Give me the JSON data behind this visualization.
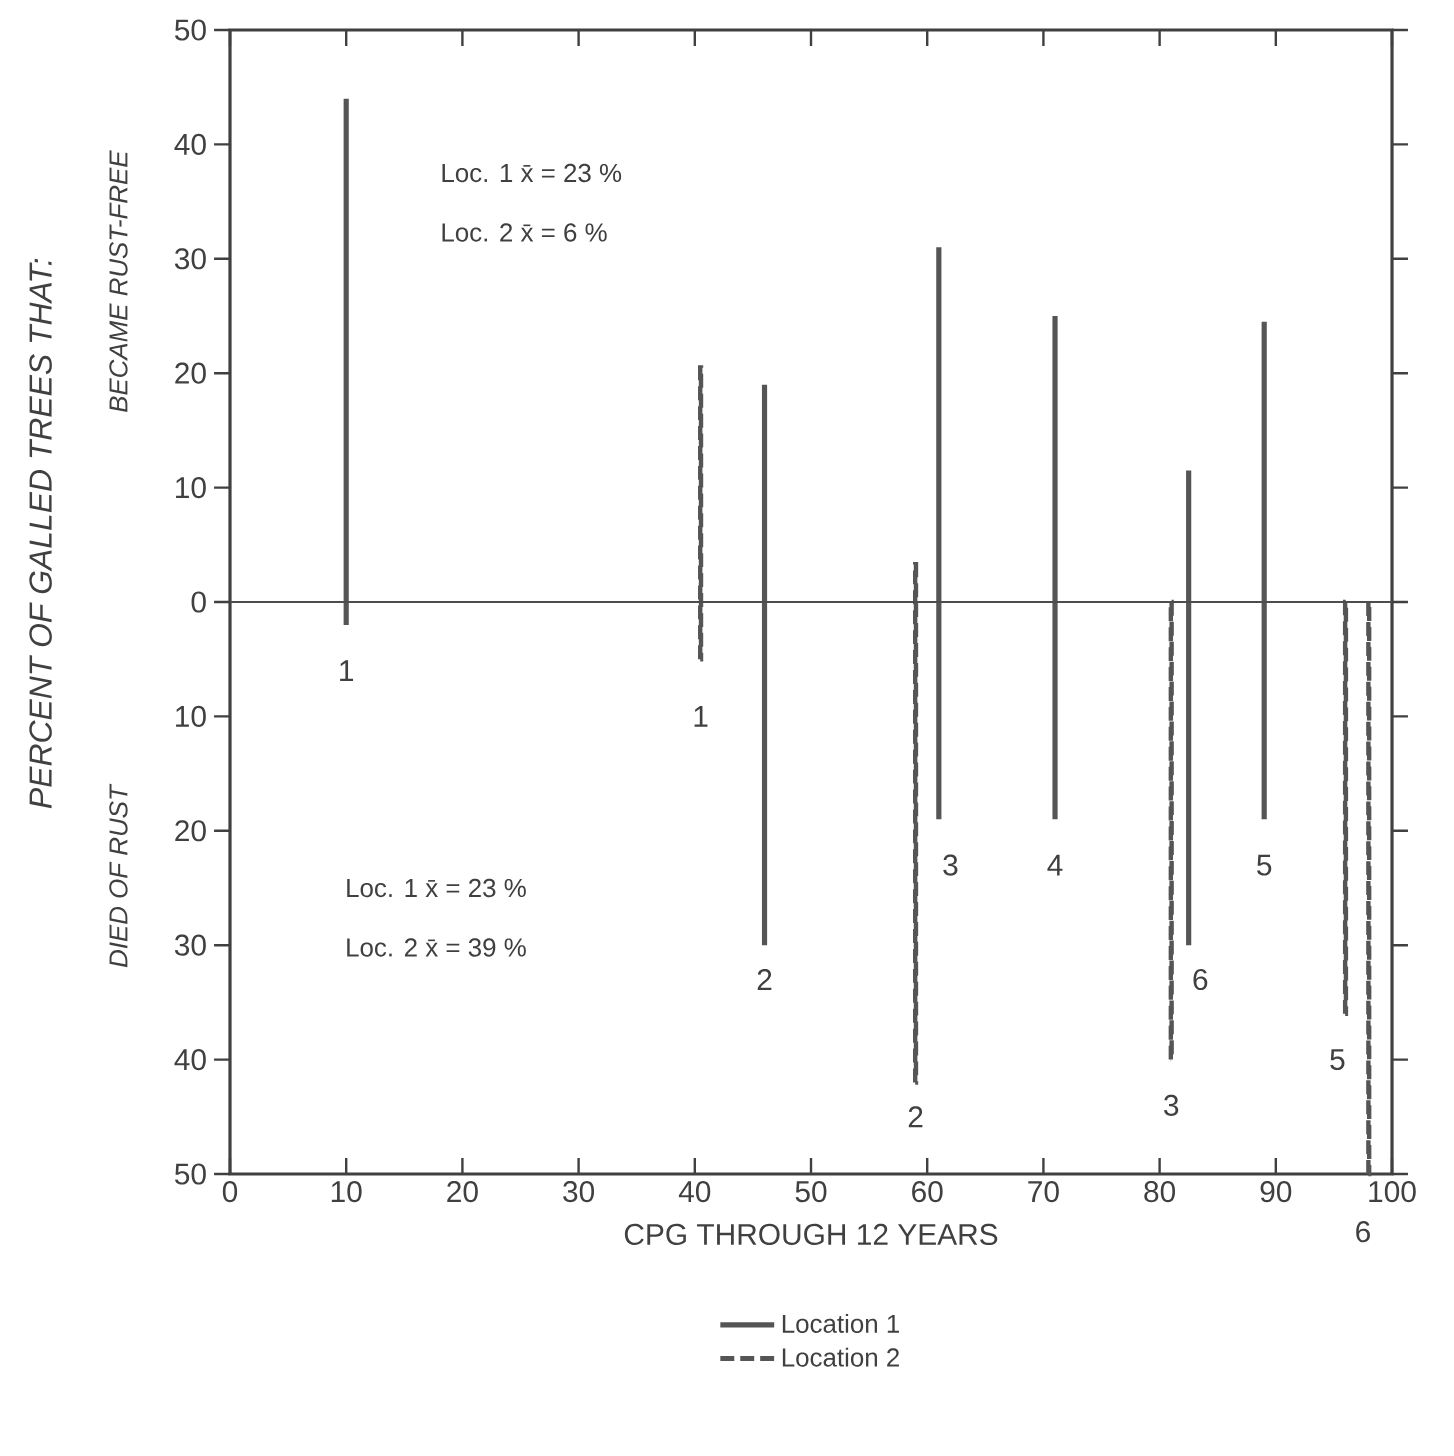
{
  "chart_data": {
    "type": "bar",
    "xlabel": "CPG THROUGH 12 YEARS",
    "ylabel": "PERCENT OF GALLED TREES THAT:",
    "series": [
      {
        "name": "Location 1",
        "color": "#555555",
        "line_style": "solid",
        "x": [
          10,
          46,
          61,
          71,
          82.5,
          89
        ],
        "base": [
          -2,
          -30,
          -19,
          -19,
          -30,
          -19
        ],
        "values": [
          46,
          49,
          50,
          44,
          41.5,
          43.5
        ]
      },
      {
        "name": "Location 2",
        "color": "#555555",
        "line_style": "dashed",
        "x": [
          40.5,
          59,
          81,
          96,
          98
        ],
        "base": [
          -5,
          -42,
          -40,
          -36,
          -50
        ],
        "values": [
          25.5,
          45.3,
          40,
          36,
          50
        ]
      }
    ],
    "xlim": [
      0,
      100
    ],
    "xticks": [
      0,
      10,
      20,
      30,
      40,
      50,
      60,
      70,
      80,
      90,
      100
    ],
    "ylim": [
      -50,
      50
    ],
    "yticks": [
      {
        "value": -50,
        "label": "50"
      },
      {
        "value": -40,
        "label": "40"
      },
      {
        "value": -30,
        "label": "30"
      },
      {
        "value": -20,
        "label": "20"
      },
      {
        "value": -10,
        "label": "10"
      },
      0,
      10,
      20,
      30,
      40,
      50
    ],
    "ref_lines": [
      {
        "axis": "y",
        "value": 0
      }
    ],
    "annotations": [
      "BECAME RUST-FREE",
      "DIED OF RUST",
      "Loc. 1 x̄ = 23 %",
      "Loc. 2 x̄ = 6 %",
      "Loc. 1 x̄ = 23 %",
      "Loc. 2 x̄ = 39 %",
      "1",
      "2",
      "3",
      "4",
      "6",
      "5",
      "1",
      "2",
      "3",
      "5",
      "6"
    ],
    "legend": "bottom"
  }
}
